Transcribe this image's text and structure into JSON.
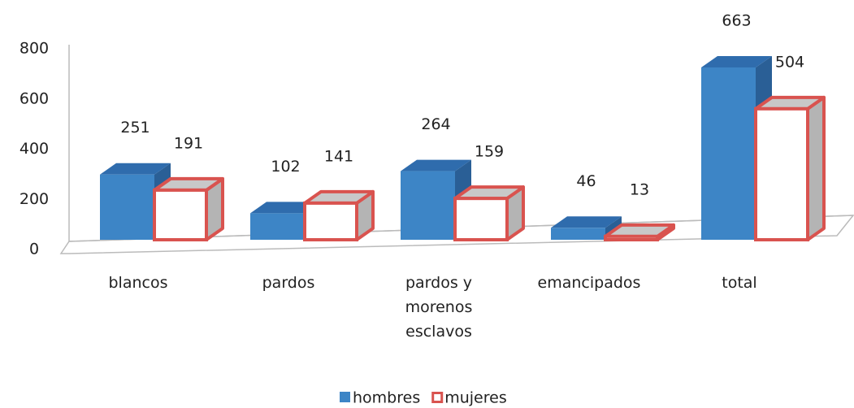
{
  "chart_data": {
    "type": "bar",
    "categories": [
      "blancos",
      "pardos",
      "pardos y morenos esclavos",
      "emancipados",
      "total"
    ],
    "series": [
      {
        "name": "hombres",
        "color": "#3d85c6",
        "values": [
          251,
          102,
          264,
          46,
          663
        ]
      },
      {
        "name": "mujeres",
        "color": "#d9534f",
        "values": [
          191,
          141,
          159,
          13,
          504
        ]
      }
    ],
    "ylim": [
      0,
      800
    ],
    "yticks": [
      0,
      200,
      400,
      600,
      800
    ]
  }
}
